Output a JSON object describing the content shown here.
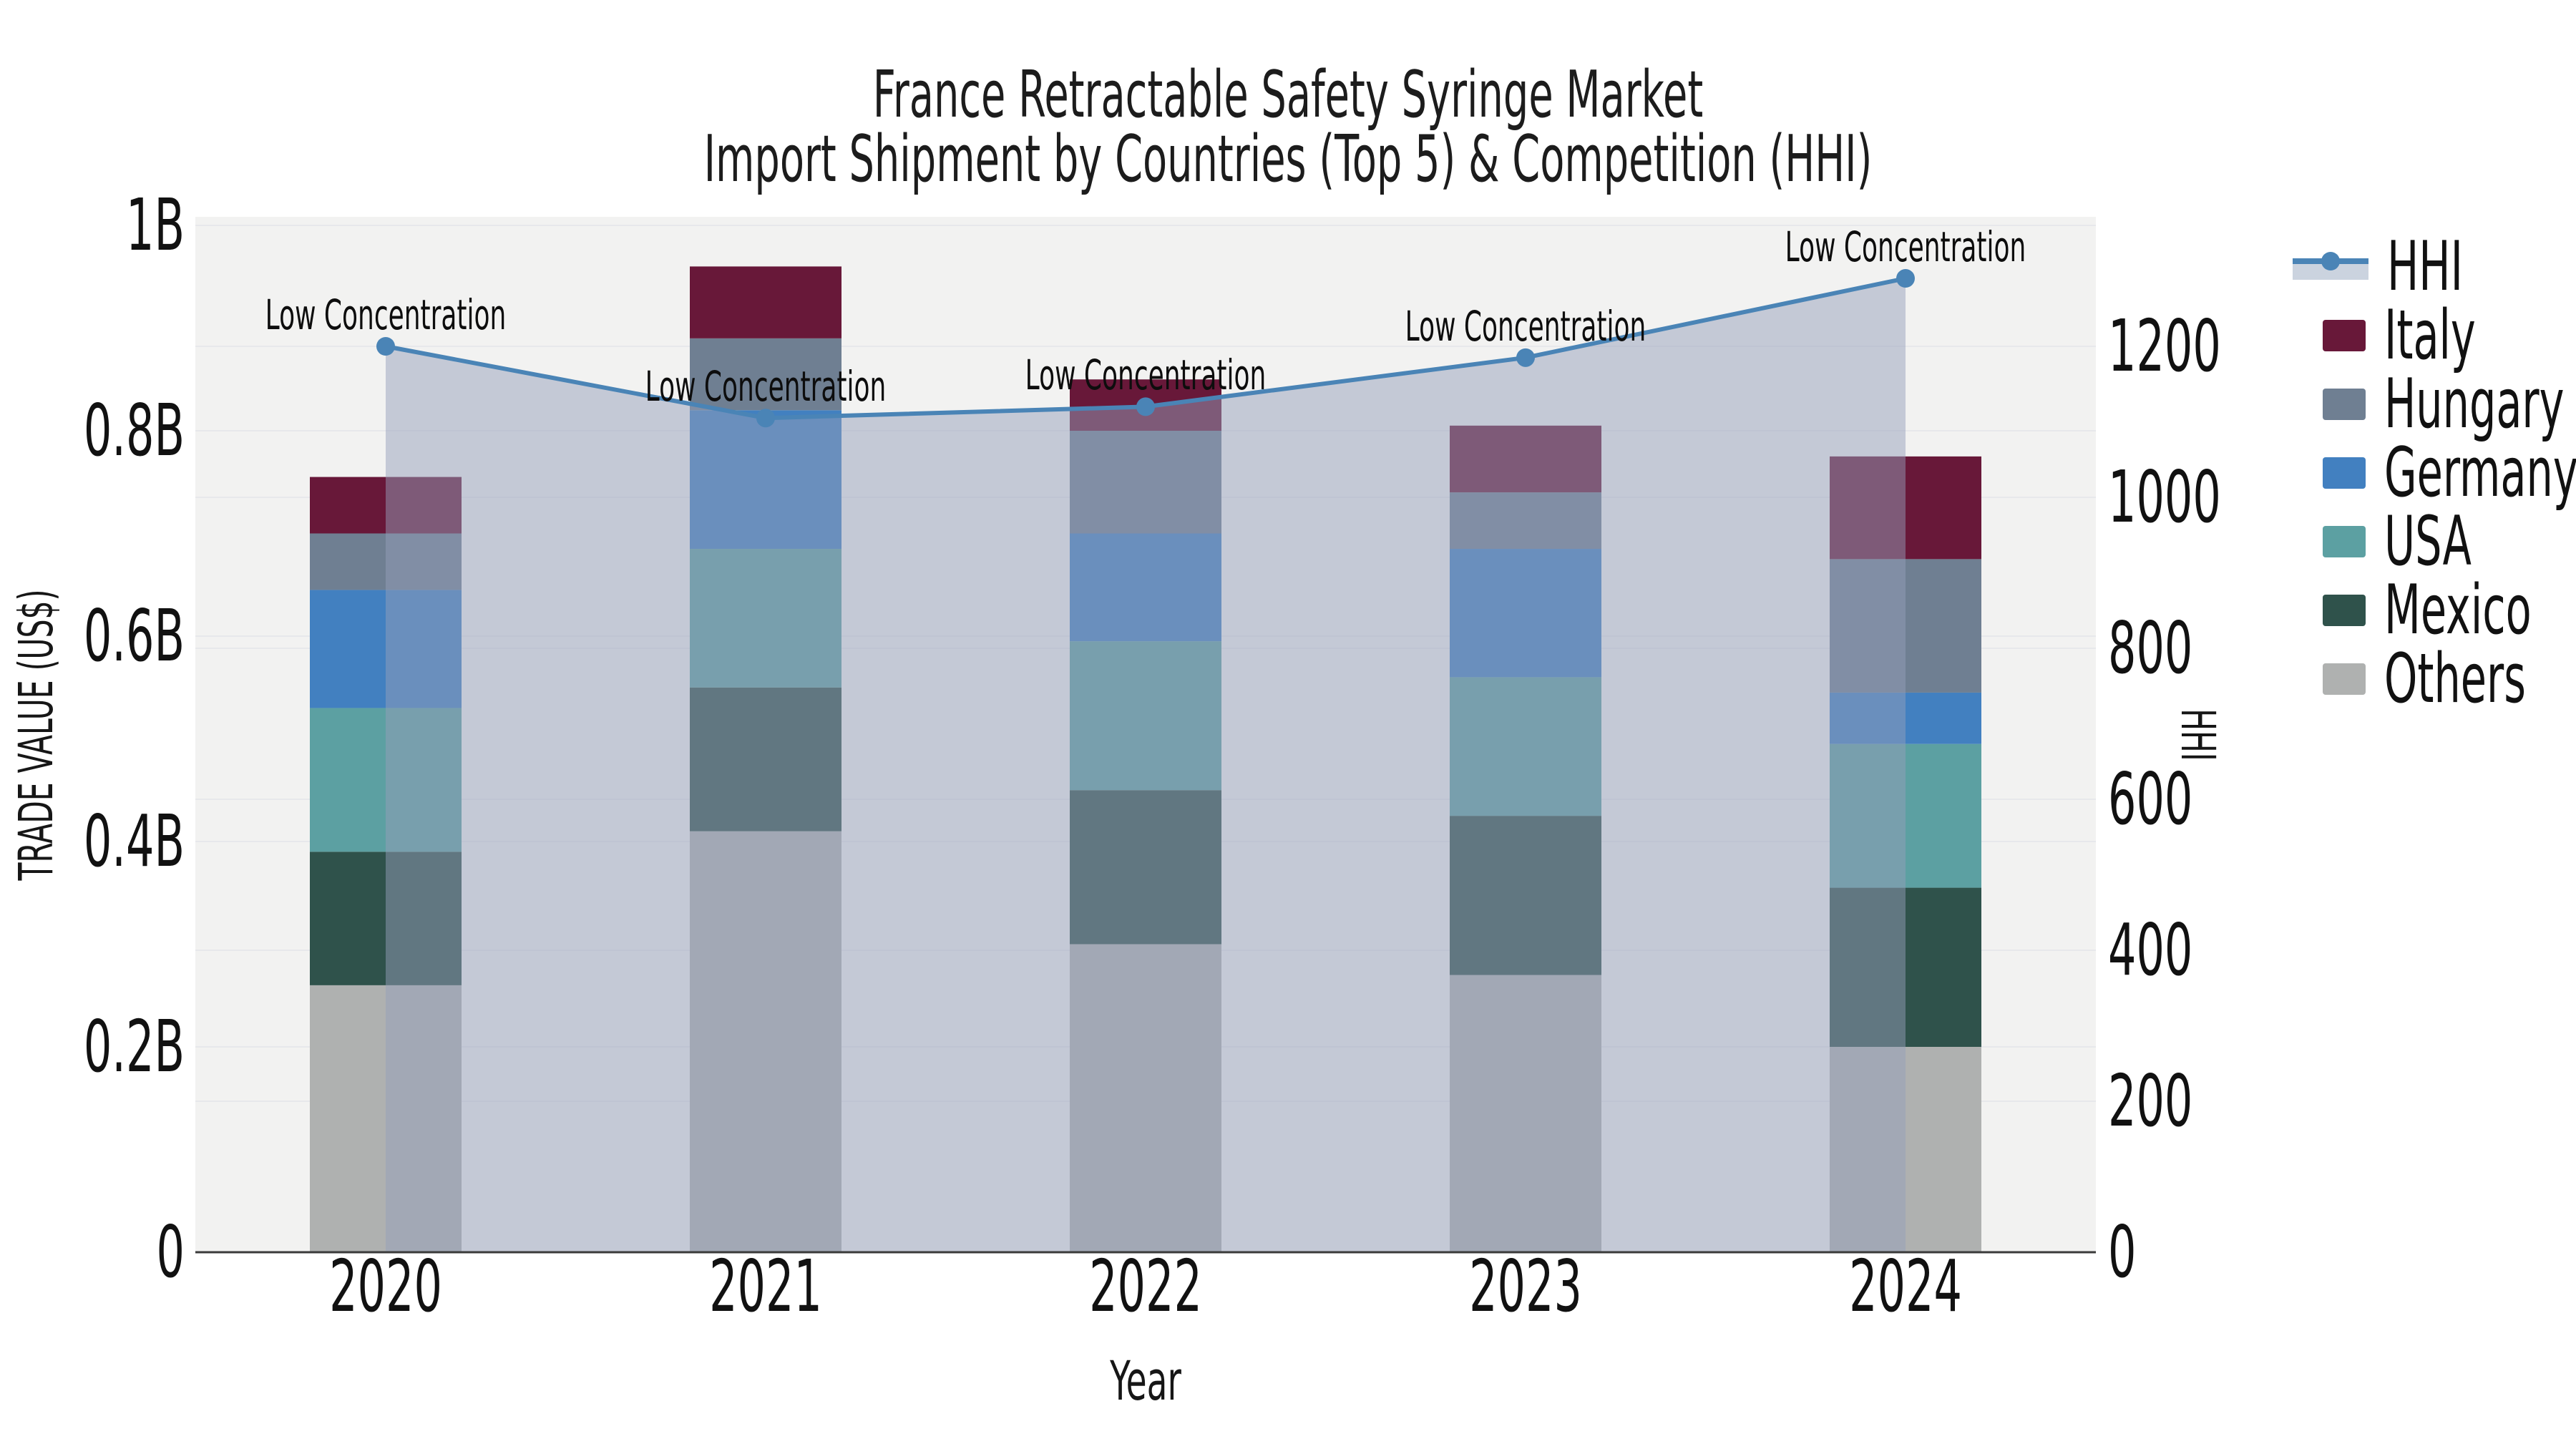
{
  "title": {
    "line1": "France Retractable Safety Syringe Market",
    "line2": "Import Shipment by Countries (Top 5) & Competition (HHI)"
  },
  "axes": {
    "x": {
      "title": "Year",
      "categories": [
        "2020",
        "2021",
        "2022",
        "2023",
        "2024"
      ]
    },
    "y_left": {
      "title": "TRADE VALUE (US$)",
      "tick_labels": [
        "0",
        "0.2B",
        "0.4B",
        "0.6B",
        "0.8B",
        "1B"
      ],
      "tick_values": [
        0,
        0.2,
        0.4,
        0.6,
        0.8,
        1.0
      ],
      "range": [
        0,
        1.01
      ]
    },
    "y_right": {
      "title": "HHI",
      "tick_labels": [
        "0",
        "200",
        "400",
        "600",
        "800",
        "1000",
        "1200"
      ],
      "tick_values": [
        0,
        200,
        400,
        600,
        800,
        1000,
        1200
      ],
      "range": [
        0,
        1372
      ]
    }
  },
  "chart_data": {
    "type": "bar",
    "subtype": "stacked bars (left axis, billions US$) + HHI line with area fill (right axis)",
    "categories": [
      "2020",
      "2021",
      "2022",
      "2023",
      "2024"
    ],
    "unit": "B US$",
    "series": [
      {
        "name": "Others",
        "color": "#afb1b0",
        "values": [
          0.26,
          0.41,
          0.3,
          0.27,
          0.2
        ]
      },
      {
        "name": "Mexico",
        "color": "#2f524b",
        "values": [
          0.13,
          0.14,
          0.15,
          0.155,
          0.155
        ]
      },
      {
        "name": "USA",
        "color": "#5ca0a2",
        "values": [
          0.14,
          0.135,
          0.145,
          0.135,
          0.14
        ]
      },
      {
        "name": "Germany",
        "color": "#4280c0",
        "values": [
          0.115,
          0.135,
          0.105,
          0.125,
          0.05
        ]
      },
      {
        "name": "Hungary",
        "color": "#6f7f92",
        "values": [
          0.055,
          0.07,
          0.1,
          0.055,
          0.13
        ]
      },
      {
        "name": "Italy",
        "color": "#681839",
        "values": [
          0.055,
          0.07,
          0.05,
          0.065,
          0.1
        ]
      }
    ],
    "bar_totals": [
      0.755,
      0.96,
      0.85,
      0.805,
      0.775
    ],
    "line_series": {
      "name": "HHI",
      "axis": "right",
      "values": [
        1200,
        1105,
        1120,
        1185,
        1290
      ],
      "color": "#4a84b6",
      "area_fill": "rgba(148,160,185,0.49)"
    },
    "annotations": [
      {
        "x": "2020",
        "text": "Low Concentration"
      },
      {
        "x": "2021",
        "text": "Low Concentration"
      },
      {
        "x": "2022",
        "text": "Low Concentration"
      },
      {
        "x": "2023",
        "text": "Low Concentration"
      },
      {
        "x": "2024",
        "text": "Low Concentration"
      }
    ],
    "legend_position": "right",
    "grid": true
  },
  "legend": {
    "items": [
      {
        "label": "HHI",
        "type": "line",
        "color": "#4a84b6"
      },
      {
        "label": "Italy",
        "type": "swatch",
        "color": "#681839"
      },
      {
        "label": "Hungary",
        "type": "swatch",
        "color": "#6f7f92"
      },
      {
        "label": "Germany",
        "type": "swatch",
        "color": "#4280c0"
      },
      {
        "label": "USA",
        "type": "swatch",
        "color": "#5ca0a2"
      },
      {
        "label": "Mexico",
        "type": "swatch",
        "color": "#2f524b"
      },
      {
        "label": "Others",
        "type": "swatch",
        "color": "#afb1b0"
      }
    ]
  },
  "colors": {
    "plot_background": "#f2f2f1",
    "gridline": "#e7e8eb",
    "axis_line": "#3a3a3a",
    "hhi_line": "#4a84b6",
    "hhi_area": "rgba(148,160,185,0.49)",
    "text": "#111111"
  }
}
